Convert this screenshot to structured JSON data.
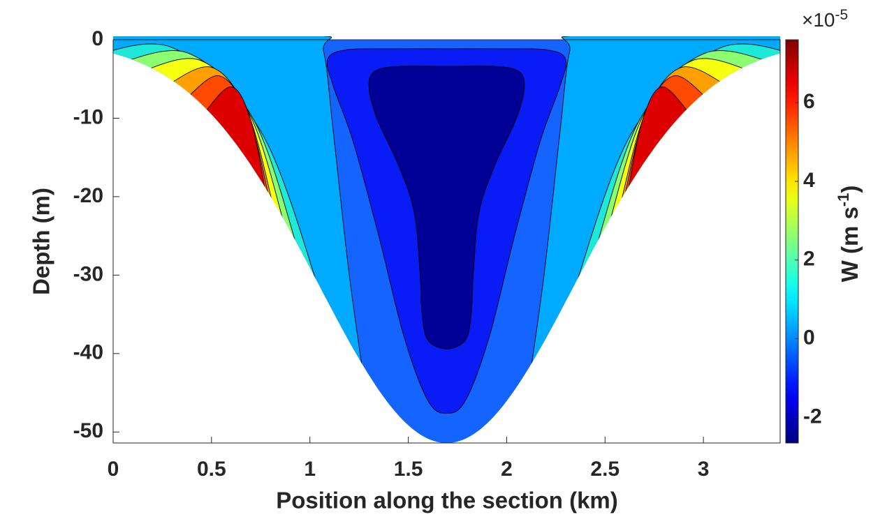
{
  "chart_data": {
    "type": "contour",
    "xlabel": "Position along the section (km)",
    "ylabel": "Depth (m)",
    "xlim": [
      0,
      3.39
    ],
    "xticks": [
      0,
      0.5,
      1,
      1.5,
      2,
      2.5,
      3
    ],
    "ylim": [
      -51.4,
      0
    ],
    "yticks": [
      -50,
      -40,
      -30,
      -20,
      -10,
      0
    ],
    "levels": [
      -2,
      -1,
      0,
      1,
      2,
      3,
      4,
      5,
      6
    ],
    "fill_colors": [
      "#000096",
      "#0a1cf5",
      "#1464ff",
      "#00aaff",
      "#1ee8d8",
      "#8cff70",
      "#f6ff10",
      "#ffa000",
      "#ff4a00",
      "#dc0000"
    ],
    "colormap": "jet",
    "colorbar": {
      "label": "W (m s",
      "label_superscript": "-1",
      "label_end": ")",
      "multiplier": "×10",
      "exponent": -5,
      "clim": [
        -2.65,
        7.6
      ],
      "ticks": [
        -2,
        0,
        2,
        4,
        6
      ]
    }
  }
}
